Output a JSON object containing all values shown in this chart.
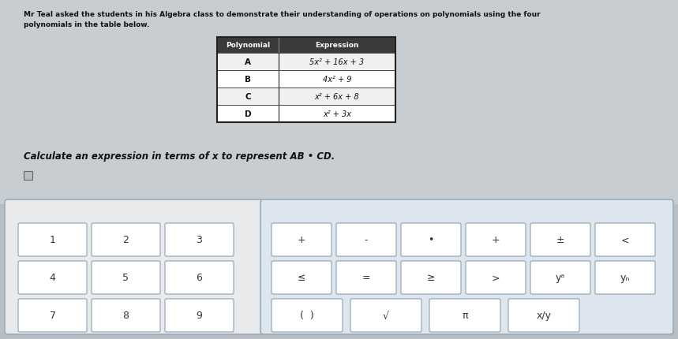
{
  "bg_color": "#b8bec4",
  "top_area_color": "#c5cacf",
  "title_line1": "Mr Teal asked the students in his Algebra class to demonstrate their understanding of operations on polynomials using the four",
  "title_line2": "polynomials in the table below.",
  "table_header": [
    "Polynomial",
    "Expression"
  ],
  "table_rows": [
    [
      "A",
      "5x² + 16x + 3"
    ],
    [
      "B",
      "4x² + 9"
    ],
    [
      "C",
      "x² + 6x + 8"
    ],
    [
      "D",
      "x² + 3x"
    ]
  ],
  "question": "Calculate an expression in terms of x to represent AB • CD.",
  "table_header_bg": "#3a3a3a",
  "table_header_color": "#ffffff",
  "table_border_color": "#222222",
  "table_row_bgs": [
    "#f0f0f0",
    "#ffffff",
    "#f0f0f0",
    "#ffffff"
  ],
  "kbd_left_bg": "#e8eaec",
  "kbd_right_bg": "#dde6ee",
  "kbd_border": "#9aacba",
  "key_bg": "#ffffff",
  "key_border": "#99aabb",
  "keys_row1_left": [
    "1",
    "2",
    "3"
  ],
  "keys_row1_right": [
    "+",
    "-",
    "•",
    "+",
    "±",
    "<"
  ],
  "keys_row2_left": [
    "4",
    "5",
    "6"
  ],
  "keys_row2_right": [
    "≤",
    "=",
    "≥",
    ">",
    "yᵃ",
    "yₙ"
  ],
  "keys_row3_left": [
    "7",
    "8",
    "9"
  ],
  "keys_row3_right": [
    "(  )",
    "√",
    "π",
    "x/y"
  ]
}
